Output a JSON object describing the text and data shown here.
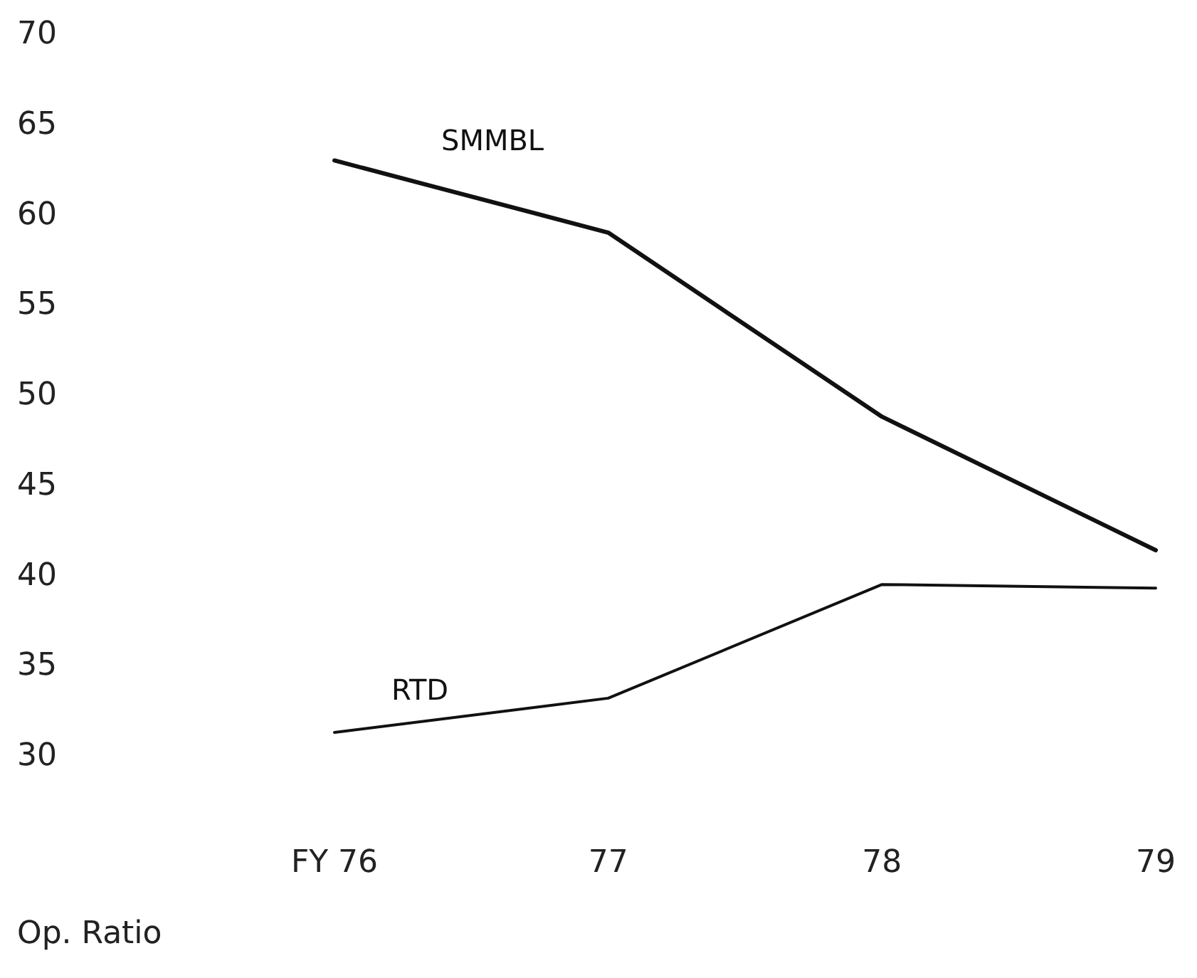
{
  "chart_data": {
    "type": "line",
    "ylabel": "Op. Ratio",
    "categories": [
      "FY 76",
      "77",
      "78",
      "79"
    ],
    "series": [
      {
        "name": "SMMBL",
        "color": "#111111",
        "values": [
          63.0,
          59.0,
          48.8,
          41.4
        ]
      },
      {
        "name": "RTD",
        "color": "#111111",
        "values": [
          31.3,
          33.2,
          39.5,
          39.3
        ]
      }
    ],
    "ylim": [
      30,
      70
    ],
    "yticks": [
      30,
      35,
      40,
      45,
      50,
      55,
      60,
      65,
      70
    ],
    "grid": false,
    "legend": false,
    "marker": "none",
    "line_style": "solid"
  }
}
